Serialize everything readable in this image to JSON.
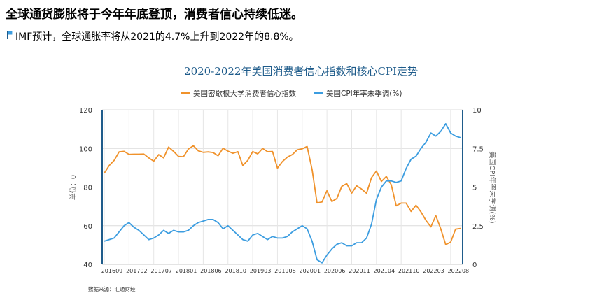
{
  "headline": "全球通货膨胀将于今年年底登顶，消费者信心持续低迷。",
  "subline": "IMF预计，全球通胀率将从2021的4.7%上升到2022年的8.8%。",
  "source": "数据来源：汇通财经",
  "colors": {
    "sentiment": "#f0922b",
    "cpi": "#3c9de0",
    "axis": "#1f5c8b",
    "title": "#1f5c8b"
  },
  "chart_data": {
    "type": "line",
    "title": "2020-2022年美国消费者信心指数和核心CPI走势",
    "ylabel_left": "单位：0",
    "ylabel_right": "美国CPI年率未季调(%)",
    "ylim_left": [
      40,
      120
    ],
    "ylim_right": [
      0,
      10
    ],
    "yticks_left": [
      40,
      60,
      80,
      100,
      120
    ],
    "yticks_right": [
      0,
      2.5,
      5,
      7.5,
      10
    ],
    "grid": true,
    "legend_position": "top",
    "x_tick_labels": [
      "201609",
      "201702",
      "201707",
      "201801",
      "201806",
      "201810",
      "201903",
      "201908",
      "202001",
      "202006",
      "202011",
      "202104",
      "202110",
      "202203",
      "202208"
    ],
    "x_start": "2016-09",
    "series": [
      {
        "name": "美国密歇根大学消费者信心指数",
        "axis": "left",
        "values": [
          87.2,
          91.2,
          93.8,
          98.2,
          98.5,
          96.9,
          97.0,
          97.0,
          97.1,
          95.1,
          93.4,
          96.8,
          95.1,
          100.7,
          98.5,
          95.9,
          95.7,
          99.7,
          101.4,
          98.8,
          98.0,
          98.2,
          97.9,
          96.2,
          100.1,
          98.6,
          97.5,
          98.3,
          91.2,
          93.8,
          98.4,
          97.2,
          100.0,
          98.3,
          98.4,
          89.8,
          93.2,
          95.5,
          96.8,
          99.3,
          99.8,
          101.0,
          89.1,
          71.8,
          72.3,
          78.1,
          72.5,
          74.1,
          80.4,
          81.8,
          76.9,
          80.7,
          79.0,
          76.8,
          84.9,
          88.3,
          82.9,
          85.5,
          81.2,
          70.3,
          71.7,
          71.7,
          67.4,
          70.6,
          67.2,
          62.8,
          59.4,
          65.2,
          58.4,
          50.2,
          51.5,
          58.2,
          58.6
        ]
      },
      {
        "name": "美国CPI年率未季调(%)",
        "axis": "right",
        "values": [
          1.5,
          1.6,
          1.7,
          2.1,
          2.5,
          2.7,
          2.4,
          2.2,
          1.9,
          1.6,
          1.7,
          1.9,
          2.2,
          2.0,
          2.2,
          2.1,
          2.1,
          2.2,
          2.5,
          2.7,
          2.8,
          2.9,
          2.9,
          2.7,
          2.3,
          2.5,
          2.2,
          1.9,
          1.6,
          1.5,
          1.9,
          2.0,
          1.8,
          1.6,
          1.8,
          1.7,
          1.7,
          1.8,
          2.1,
          2.3,
          2.5,
          2.3,
          1.5,
          0.3,
          0.1,
          0.6,
          1.0,
          1.3,
          1.4,
          1.2,
          1.2,
          1.4,
          1.4,
          1.7,
          2.6,
          4.2,
          5.0,
          5.4,
          5.4,
          5.3,
          5.4,
          6.2,
          6.8,
          7.0,
          7.5,
          7.9,
          8.5,
          8.3,
          8.6,
          9.1,
          8.5,
          8.3,
          8.2
        ]
      }
    ]
  }
}
